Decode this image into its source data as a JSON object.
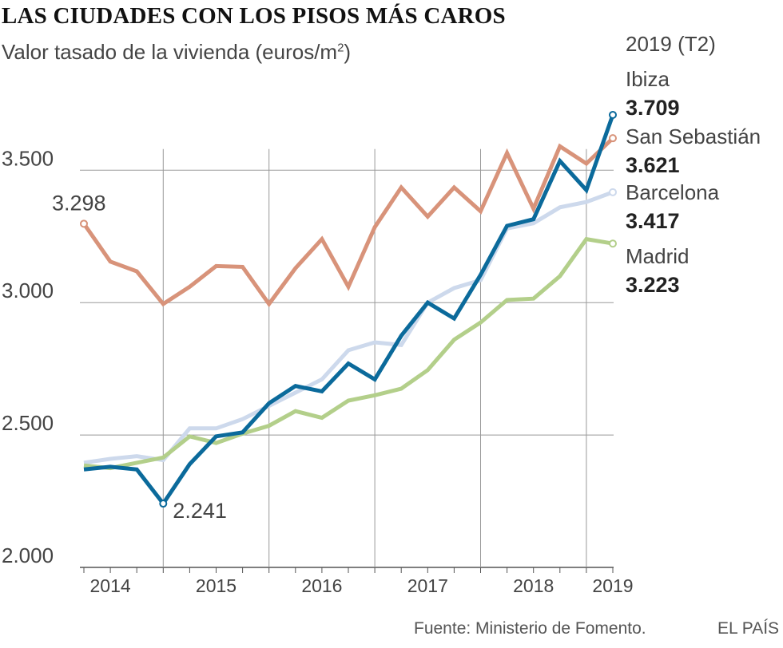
{
  "title": "LAS CIUDADES CON LOS PISOS MÁS CAROS",
  "subtitle": "Valor tasado de la vivienda (euros/m",
  "subtitle_sup": "2",
  "subtitle_end": ")",
  "period_label": "2019 (T2)",
  "source": "Fuente: Ministerio de Fomento.",
  "brand": "EL PAÍS",
  "chart_data": {
    "type": "line",
    "title": "LAS CIUDADES CON LOS PISOS MÁS CAROS",
    "ylabel": "Valor tasado de la vivienda (euros/m2)",
    "xlabel": "",
    "ylim": [
      2000,
      3800
    ],
    "yticks": [
      2000,
      2500,
      3000,
      3500
    ],
    "ytick_labels": [
      "2.000",
      "2.500",
      "3.000",
      "3.500"
    ],
    "x": [
      0,
      1,
      2,
      3,
      4,
      5,
      6,
      7,
      8,
      9,
      10,
      11,
      12,
      13,
      14,
      15,
      16,
      17,
      18,
      19,
      20
    ],
    "x_period_labels": [
      "2014 T2",
      "2014 T3",
      "2014 T4",
      "2015 T1",
      "2015 T2",
      "2015 T3",
      "2015 T4",
      "2016 T1",
      "2016 T2",
      "2016 T3",
      "2016 T4",
      "2017 T1",
      "2017 T2",
      "2017 T3",
      "2017 T4",
      "2018 T1",
      "2018 T2",
      "2018 T3",
      "2018 T4",
      "2019 T1",
      "2019 T2"
    ],
    "xtick_labels": [
      {
        "label": "2014",
        "x": 1
      },
      {
        "label": "2015",
        "x": 5
      },
      {
        "label": "2016",
        "x": 9
      },
      {
        "label": "2017",
        "x": 13
      },
      {
        "label": "2018",
        "x": 17
      },
      {
        "label": "2019",
        "x": 20
      }
    ],
    "vertical_gridlines_x": [
      3,
      7,
      11,
      15,
      19
    ],
    "series": [
      {
        "name": "San Sebastián",
        "color": "#d8937a",
        "label_value": "3.621",
        "values": [
          3298,
          3155,
          3118,
          2995,
          3060,
          3138,
          3135,
          2995,
          3130,
          3240,
          3060,
          3285,
          3435,
          3325,
          3435,
          3345,
          3565,
          3355,
          3590,
          3525,
          3621
        ]
      },
      {
        "name": "Barcelona",
        "color": "#cdd9ec",
        "label_value": "3.417",
        "values": [
          2395,
          2410,
          2420,
          2405,
          2525,
          2525,
          2560,
          2610,
          2660,
          2710,
          2820,
          2850,
          2840,
          3000,
          3055,
          3085,
          3280,
          3300,
          3360,
          3380,
          3417
        ]
      },
      {
        "name": "Madrid",
        "color": "#b3cf8a",
        "label_value": "3.223",
        "values": [
          2385,
          2375,
          2395,
          2415,
          2495,
          2470,
          2505,
          2535,
          2590,
          2565,
          2630,
          2650,
          2675,
          2745,
          2860,
          2925,
          3010,
          3015,
          3100,
          3240,
          3223
        ]
      },
      {
        "name": "Ibiza",
        "color": "#0b6a9b",
        "label_value": "3.709",
        "values": [
          2370,
          2380,
          2370,
          2241,
          2390,
          2495,
          2510,
          2620,
          2685,
          2665,
          2770,
          2710,
          2875,
          3000,
          2940,
          3105,
          3290,
          3315,
          3535,
          3425,
          3709
        ]
      }
    ],
    "annotations": [
      {
        "text": "3.298",
        "series": "San Sebastián",
        "x": 0,
        "y": 3298
      },
      {
        "text": "2.241",
        "series": "Ibiza",
        "x": 3,
        "y": 2241
      }
    ],
    "legend": {
      "placement": "right",
      "order": [
        "Ibiza",
        "San Sebastián",
        "Barcelona",
        "Madrid"
      ]
    },
    "grid": true
  }
}
